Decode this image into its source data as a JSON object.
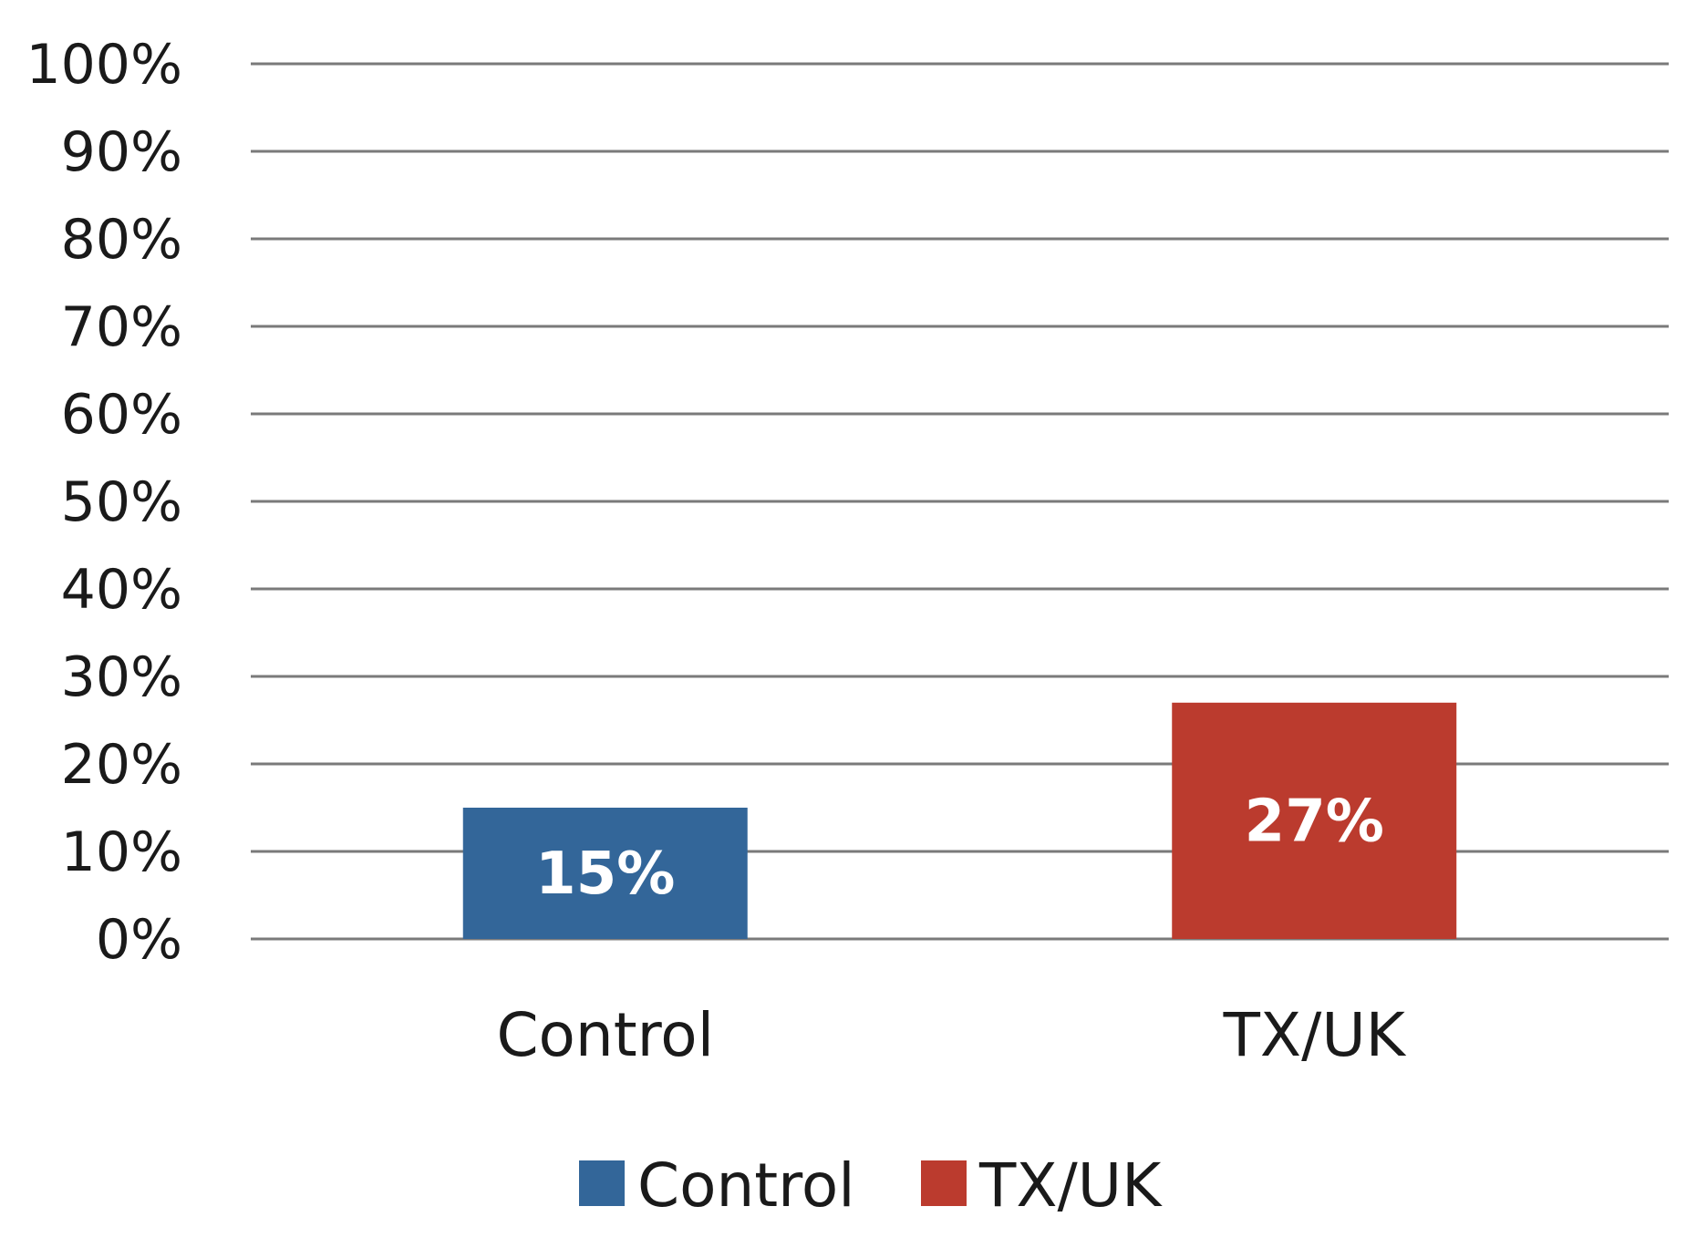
{
  "chart_data": {
    "type": "bar",
    "categories": [
      "Control",
      "TX/UK"
    ],
    "values": [
      15,
      27
    ],
    "value_labels": [
      "15%",
      "27%"
    ],
    "colors": [
      "#336699",
      "#bb3b2e"
    ],
    "ylim": [
      0,
      100
    ],
    "yticks": [
      0,
      10,
      20,
      30,
      40,
      50,
      60,
      70,
      80,
      90,
      100
    ],
    "ytick_labels": [
      "0%",
      "10%",
      "20%",
      "30%",
      "40%",
      "50%",
      "60%",
      "70%",
      "80%",
      "90%",
      "100%"
    ],
    "grid": true,
    "legend": {
      "position": "bottom",
      "entries": [
        "Control",
        "TX/UK"
      ]
    },
    "title": "",
    "xlabel": "",
    "ylabel": ""
  }
}
